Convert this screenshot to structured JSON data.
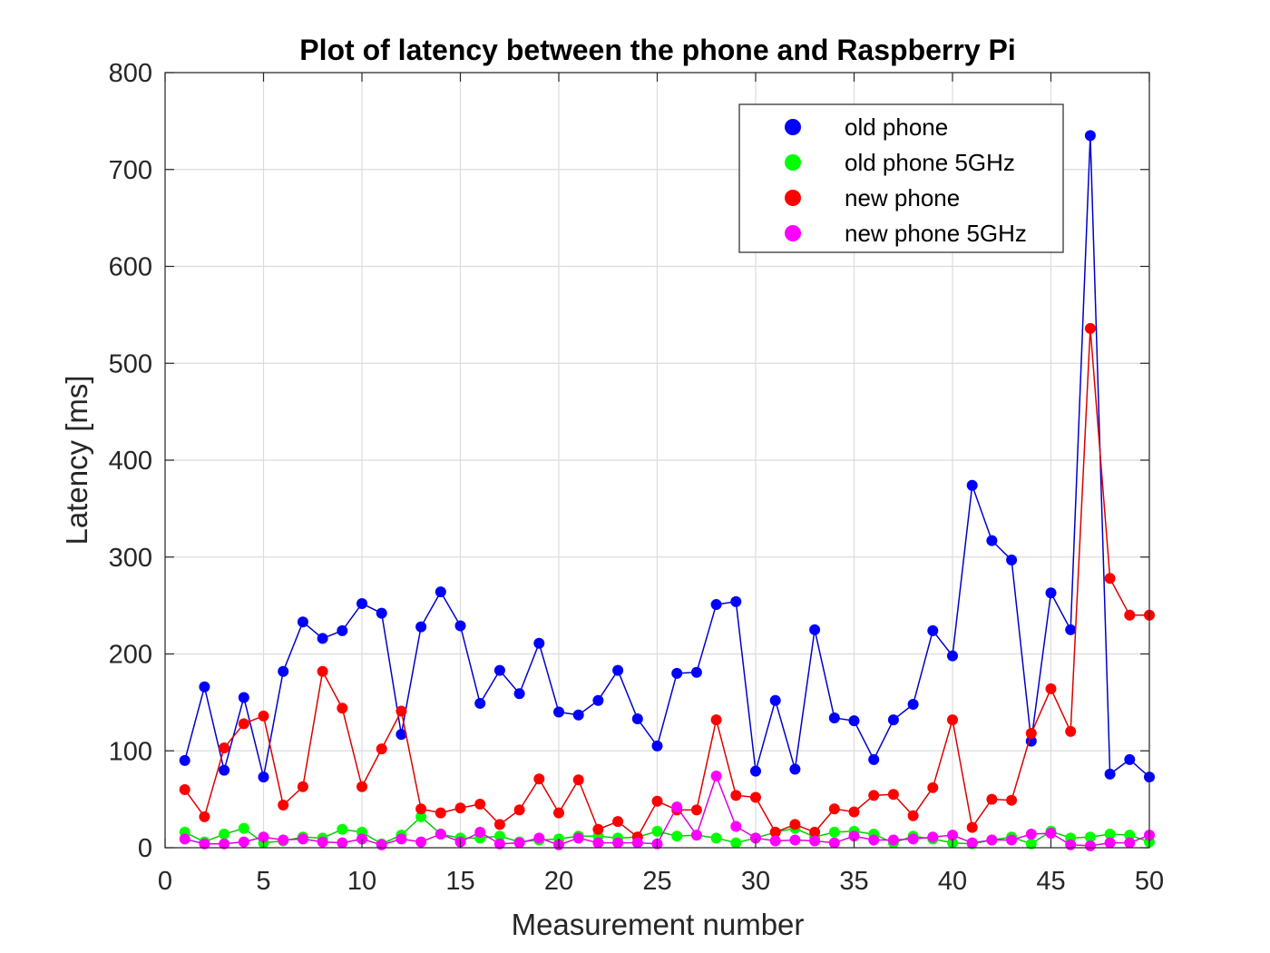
{
  "chart_data": {
    "type": "line",
    "title": "Plot of latency between the phone and Raspberry Pi",
    "xlabel": "Measurement number",
    "ylabel": "Latency [ms]",
    "xlim": [
      0,
      50
    ],
    "ylim": [
      0,
      800
    ],
    "xticks": [
      0,
      5,
      10,
      15,
      20,
      25,
      30,
      35,
      40,
      45,
      50
    ],
    "yticks": [
      0,
      100,
      200,
      300,
      400,
      500,
      600,
      700,
      800
    ],
    "grid": true,
    "legend_position": "top-right",
    "x": [
      1,
      2,
      3,
      4,
      5,
      6,
      7,
      8,
      9,
      10,
      11,
      12,
      13,
      14,
      15,
      16,
      17,
      18,
      19,
      20,
      21,
      22,
      23,
      24,
      25,
      26,
      27,
      28,
      29,
      30,
      31,
      32,
      33,
      34,
      35,
      36,
      37,
      38,
      39,
      40,
      41,
      42,
      43,
      44,
      45,
      46,
      47,
      48,
      49,
      50
    ],
    "series": [
      {
        "name": "old phone",
        "color": "#0000ff",
        "line_color": "#0000cc",
        "values": [
          90,
          166,
          80,
          155,
          73,
          182,
          233,
          216,
          224,
          252,
          242,
          117,
          228,
          264,
          229,
          149,
          183,
          159,
          211,
          140,
          137,
          152,
          183,
          133,
          105,
          180,
          181,
          251,
          254,
          79,
          152,
          81,
          225,
          134,
          131,
          91,
          132,
          148,
          224,
          198,
          374,
          317,
          297,
          110,
          263,
          225,
          735,
          76,
          91,
          73
        ]
      },
      {
        "name": "old phone 5GHz",
        "color": "#00ff00",
        "line_color": "#00cc00",
        "values": [
          16,
          6,
          14,
          20,
          5,
          7,
          11,
          10,
          19,
          16,
          4,
          13,
          32,
          14,
          10,
          10,
          12,
          6,
          8,
          9,
          12,
          12,
          10,
          11,
          17,
          12,
          13,
          10,
          5,
          10,
          16,
          20,
          11,
          16,
          17,
          14,
          5,
          12,
          9,
          5,
          4,
          8,
          11,
          4,
          17,
          10,
          11,
          14,
          13,
          6
        ]
      },
      {
        "name": "new phone",
        "color": "#ff0000",
        "line_color": "#dd0000",
        "values": [
          60,
          32,
          103,
          128,
          136,
          44,
          63,
          182,
          144,
          63,
          102,
          141,
          40,
          36,
          41,
          45,
          24,
          39,
          71,
          36,
          70,
          19,
          27,
          11,
          48,
          39,
          39,
          132,
          54,
          52,
          16,
          24,
          16,
          40,
          37,
          54,
          55,
          33,
          62,
          132,
          21,
          50,
          49,
          118,
          164,
          120,
          536,
          278,
          240,
          240
        ]
      },
      {
        "name": "new phone 5GHz",
        "color": "#ff00ff",
        "line_color": "#dd00dd",
        "values": [
          9,
          4,
          4,
          6,
          11,
          8,
          9,
          6,
          5,
          9,
          3,
          9,
          6,
          14,
          6,
          16,
          4,
          5,
          10,
          3,
          10,
          5,
          5,
          5,
          4,
          42,
          13,
          74,
          22,
          10,
          7,
          8,
          7,
          5,
          12,
          8,
          8,
          9,
          11,
          13,
          5,
          8,
          8,
          14,
          15,
          3,
          2,
          5,
          5,
          13
        ]
      }
    ]
  }
}
